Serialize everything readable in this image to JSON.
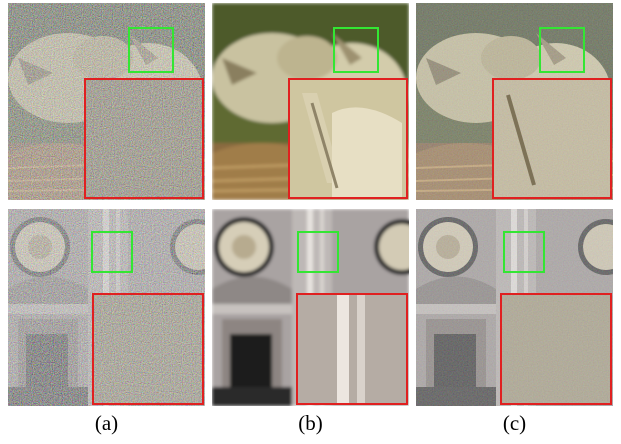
{
  "captions": {
    "a": "(a)",
    "b": "(b)",
    "c": "(c)"
  },
  "colors": {
    "roi_box": "#33e633",
    "zoom_box": "#e02020"
  },
  "panels": [
    {
      "scene": "nestling-birds-in-nest",
      "variant": "noisy"
    },
    {
      "scene": "nestling-birds-in-nest",
      "variant": "denoised-smooth"
    },
    {
      "scene": "nestling-birds-in-nest",
      "variant": "denoised-detailed"
    },
    {
      "scene": "building-facade-with-circular-ornaments",
      "variant": "noisy"
    },
    {
      "scene": "building-facade-with-circular-ornaments",
      "variant": "denoised-smooth"
    },
    {
      "scene": "building-facade-with-circular-ornaments",
      "variant": "denoised-detailed"
    }
  ]
}
